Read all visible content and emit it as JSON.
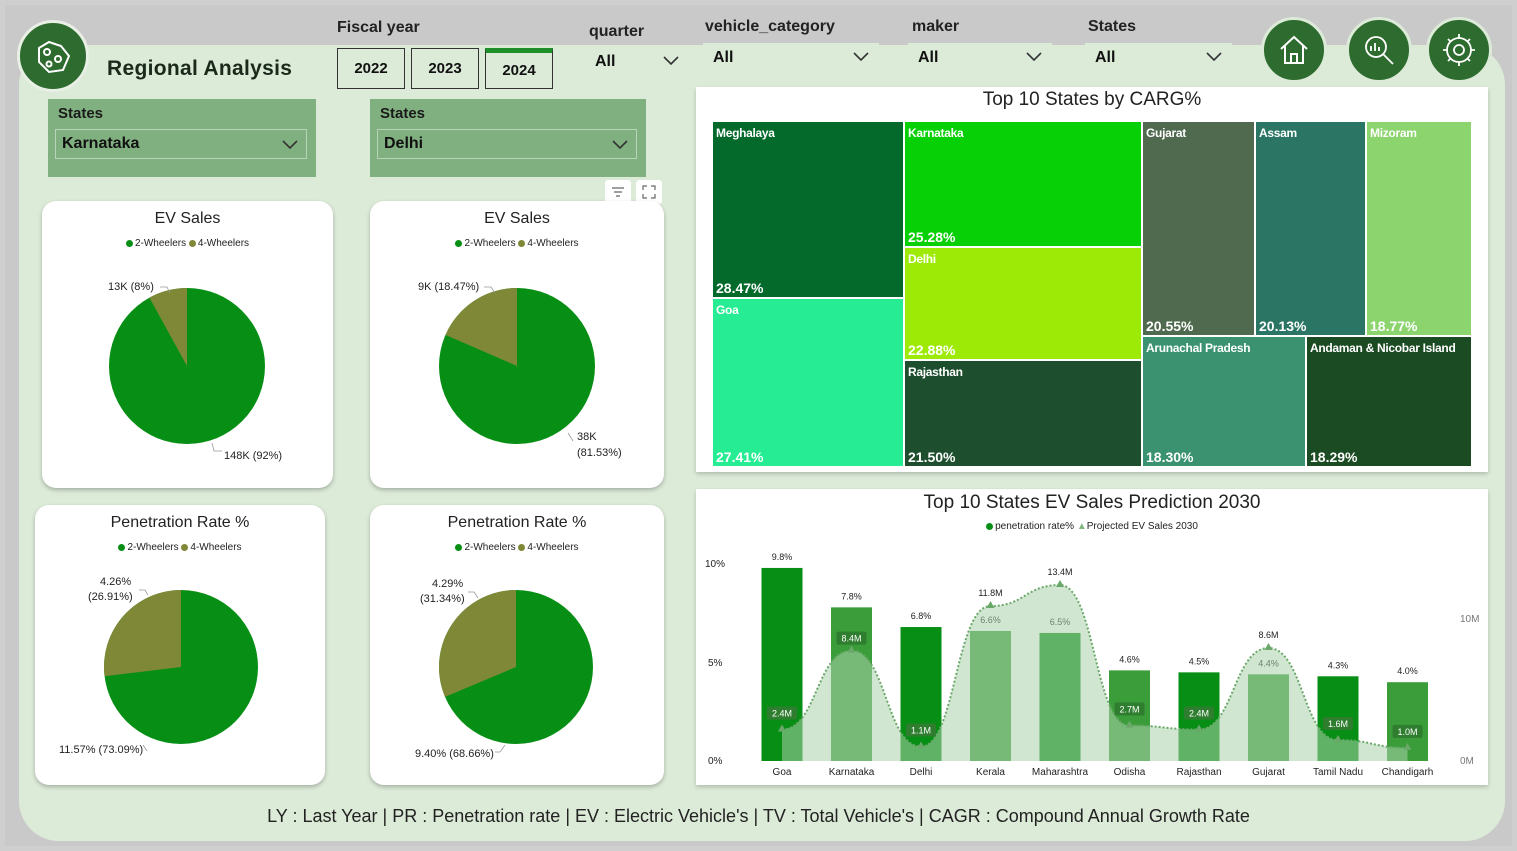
{
  "header": {
    "title": "Regional Analysis",
    "fiscal_year_label": "Fiscal year",
    "years": [
      "2022",
      "2023",
      "2024"
    ],
    "active_year": "2024",
    "quarter_label": "quarter",
    "quarter_value": "All",
    "vehicle_category_label": "vehicle_category",
    "vehicle_category_value": "All",
    "maker_label": "maker",
    "maker_value": "All",
    "states_label": "States",
    "states_value": "All"
  },
  "slicers": [
    {
      "label": "States",
      "value": "Karnataka"
    },
    {
      "label": "States",
      "value": "Delhi"
    }
  ],
  "pies": [
    {
      "title": "EV Sales",
      "legend": [
        "2-Wheelers",
        "4-Wheelers"
      ],
      "label_small": "13K (8%)",
      "label_big": "148K (92%)"
    },
    {
      "title": "EV Sales",
      "legend": [
        "2-Wheelers",
        "4-Wheelers"
      ],
      "label_small": "9K (18.47%)",
      "label_big_1": "38K",
      "label_big_2": "(81.53%)"
    },
    {
      "title": "Penetration Rate %",
      "legend": [
        "2-Wheelers",
        "4-Wheelers"
      ],
      "label_small_1": "4.26%",
      "label_small_2": "(26.91%)",
      "label_big": "11.57% (73.09%)"
    },
    {
      "title": "Penetration Rate %",
      "legend": [
        "2-Wheelers",
        "4-Wheelers"
      ],
      "label_small_1": "4.29%",
      "label_small_2": "(31.34%)",
      "label_big": "9.40% (68.66%)"
    }
  ],
  "colors": {
    "two_wheelers": "#078f15",
    "four_wheelers": "#7f8837",
    "panel": "#dcead8",
    "brand": "#2e6b2e"
  },
  "treemap": {
    "title": "Top 10 States by CARG%",
    "items": [
      {
        "name": "Meghalaya",
        "value": "28.47%",
        "color": "#036a2b"
      },
      {
        "name": "Goa",
        "value": "27.41%",
        "color": "#26ec94"
      },
      {
        "name": "Karnataka",
        "value": "25.28%",
        "color": "#07d006"
      },
      {
        "name": "Delhi",
        "value": "22.88%",
        "color": "#9dea06"
      },
      {
        "name": "Rajasthan",
        "value": "21.50%",
        "color": "#1d4f2e"
      },
      {
        "name": "Gujarat",
        "value": "20.55%",
        "color": "#4f6a4f"
      },
      {
        "name": "Assam",
        "value": "20.13%",
        "color": "#2a7563"
      },
      {
        "name": "Mizoram",
        "value": "18.77%",
        "color": "#8cd56e"
      },
      {
        "name": "Arunachal Pradesh",
        "value": "18.30%",
        "color": "#3a9271"
      },
      {
        "name": "Andaman & Nicobar Island",
        "value": "18.29%",
        "color": "#1b4b22"
      }
    ]
  },
  "combo": {
    "title": "Top 10 States EV Sales Prediction 2030",
    "legend_bar": "penetration rate%",
    "legend_area": "Projected EV Sales 2030",
    "y_left_ticks": [
      "10%",
      "5%",
      "0%"
    ],
    "y_right_ticks": [
      "10M",
      "0M"
    ]
  },
  "chart_data": {
    "type": "bar",
    "categories": [
      "Goa",
      "Karnataka",
      "Delhi",
      "Kerala",
      "Maharashtra",
      "Odisha",
      "Rajasthan",
      "Gujarat",
      "Tamil Nadu",
      "Chandigarh"
    ],
    "series": [
      {
        "name": "penetration rate%",
        "values": [
          9.8,
          7.8,
          6.8,
          6.6,
          6.5,
          4.6,
          4.5,
          4.4,
          4.3,
          4.0
        ],
        "labels": [
          "9.8%",
          "7.8%",
          "6.8%",
          "6.6%",
          "6.5%",
          "4.6%",
          "4.5%",
          "4.4%",
          "4.3%",
          "4.0%"
        ]
      },
      {
        "name": "Projected EV Sales 2030",
        "values": [
          2.4,
          8.4,
          1.1,
          11.8,
          13.4,
          2.7,
          2.4,
          8.6,
          1.6,
          1.0
        ],
        "labels": [
          "2.4M",
          "8.4M",
          "1.1M",
          "11.8M",
          "13.4M",
          "2.7M",
          "2.4M",
          "8.6M",
          "1.6M",
          "1.0M"
        ]
      }
    ],
    "ylim_left": [
      0,
      10
    ],
    "ylim_right": [
      0,
      15
    ]
  },
  "footer": "LY : Last Year  |  PR : Penetration rate  | EV : Electric Vehicle's  | TV : Total Vehicle's  |  CAGR : Compound Annual Growth Rate"
}
